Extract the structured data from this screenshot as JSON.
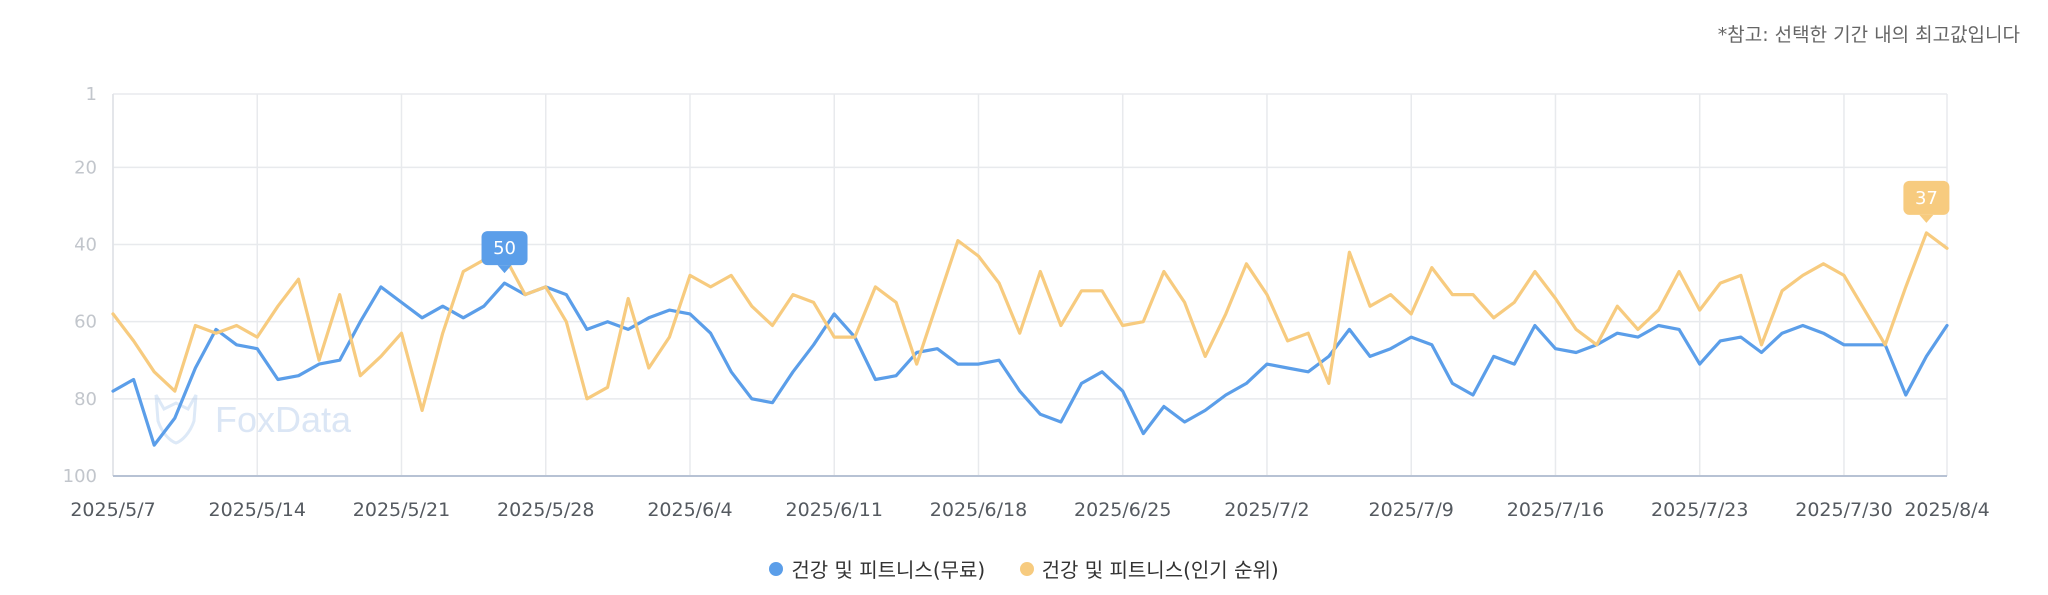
{
  "note": "*참고: 선택한 기간 내의 최고값입니다",
  "watermark": "FoxData",
  "chart_data": {
    "type": "line",
    "y_inverted": true,
    "ylim": [
      1,
      100
    ],
    "y_ticks": [
      "1",
      "20",
      "40",
      "60",
      "80",
      "100"
    ],
    "y_tick_values": [
      1,
      20,
      40,
      60,
      80,
      100
    ],
    "x_ticks": [
      "2025/5/7",
      "2025/5/14",
      "2025/5/21",
      "2025/5/28",
      "2025/6/4",
      "2025/6/11",
      "2025/6/18",
      "2025/6/25",
      "2025/7/2",
      "2025/7/9",
      "2025/7/16",
      "2025/7/23",
      "2025/7/30",
      "2025/8/4"
    ],
    "x_tick_days": [
      0,
      7,
      14,
      21,
      28,
      35,
      42,
      49,
      56,
      63,
      70,
      77,
      84,
      89
    ],
    "series": [
      {
        "name": "건강 및 피트니스(무료)",
        "color": "#5b9ee9",
        "values": [
          78,
          75,
          92,
          85,
          72,
          62,
          66,
          67,
          75,
          74,
          71,
          70,
          60,
          51,
          55,
          59,
          56,
          59,
          56,
          50,
          53,
          51,
          53,
          62,
          60,
          62,
          59,
          57,
          58,
          63,
          73,
          80,
          81,
          73,
          66,
          58,
          64,
          75,
          74,
          68,
          67,
          71,
          71,
          70,
          78,
          84,
          86,
          76,
          73,
          78,
          89,
          82,
          86,
          83,
          79,
          76,
          71,
          72,
          73,
          69,
          62,
          69,
          67,
          64,
          66,
          76,
          79,
          69,
          71,
          61,
          67,
          68,
          66,
          63,
          64,
          61,
          62,
          71,
          65,
          64,
          68,
          63,
          61,
          63,
          66,
          66,
          66,
          79,
          69,
          61
        ]
      },
      {
        "name": "건강 및 피트니스(인기 순위)",
        "color": "#f7cb7f",
        "values": [
          58,
          65,
          73,
          78,
          61,
          63,
          61,
          64,
          56,
          49,
          70,
          53,
          74,
          69,
          63,
          83,
          63,
          47,
          44,
          43,
          53,
          51,
          60,
          80,
          77,
          54,
          72,
          64,
          48,
          51,
          48,
          56,
          61,
          53,
          55,
          64,
          64,
          51,
          55,
          71,
          55,
          39,
          43,
          50,
          63,
          47,
          61,
          52,
          52,
          61,
          60,
          47,
          55,
          69,
          58,
          45,
          53,
          65,
          63,
          76,
          42,
          56,
          53,
          58,
          46,
          53,
          53,
          59,
          55,
          47,
          54,
          62,
          66,
          56,
          62,
          57,
          47,
          57,
          50,
          48,
          66,
          52,
          48,
          45,
          48,
          57,
          66,
          51,
          37,
          41
        ]
      }
    ],
    "highlights": [
      {
        "series": 0,
        "label": "50",
        "index": 19
      },
      {
        "series": 1,
        "label": "37",
        "index": 88
      }
    ],
    "grid": true,
    "legend_position": "bottom-center"
  }
}
